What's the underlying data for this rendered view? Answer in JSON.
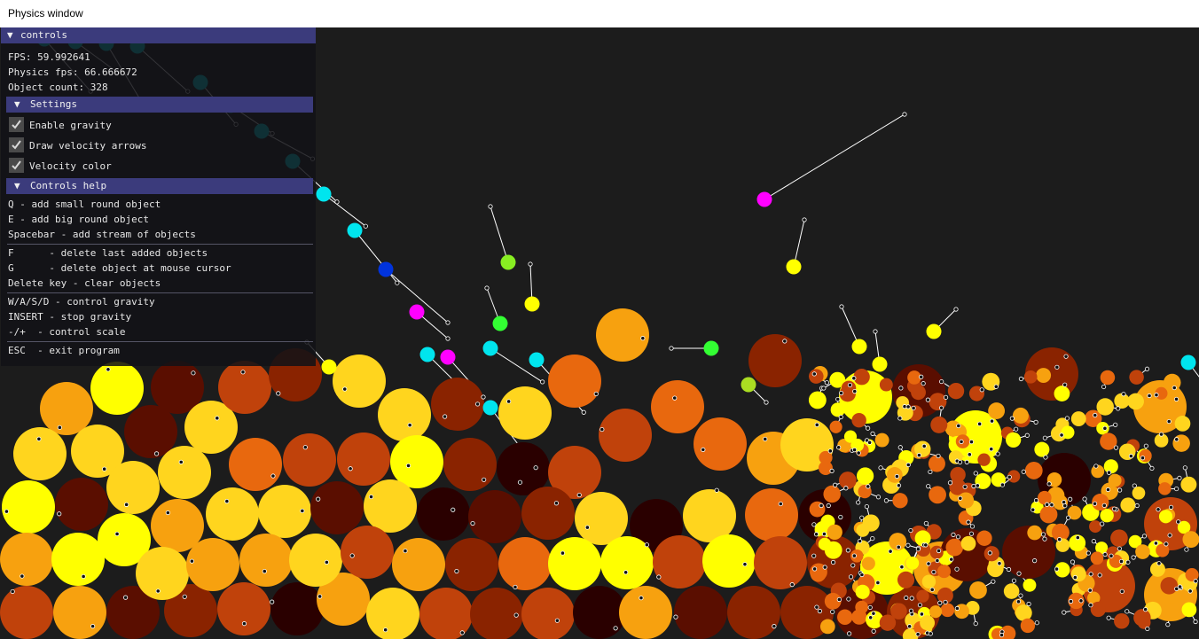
{
  "window_title": "Physics window",
  "controls": {
    "header": "controls",
    "fps_line": "FPS: 59.992641",
    "physics_fps_line": "Physics fps: 66.666672",
    "object_count_line": "Object count: 328"
  },
  "settings": {
    "header": "Settings",
    "options": [
      {
        "label": "Enable gravity",
        "checked": true
      },
      {
        "label": "Draw velocity arrows",
        "checked": true
      },
      {
        "label": "Velocity color",
        "checked": true
      }
    ]
  },
  "help": {
    "header": "Controls help",
    "lines": [
      "Q - add small round object",
      "E - add big round object",
      "Spacebar - add stream of objects",
      "F      - delete last added objects",
      "G      - delete object at mouse cursor",
      "Delete key - clear objects",
      "W/A/S/D - control gravity",
      "INSERT - stop gravity",
      "-/+  - control scale",
      "ESC  - exit program"
    ]
  },
  "icons": {
    "collapse": "triangle-down-icon",
    "check": "checkmark-icon"
  },
  "colors": {
    "panel_header": "#3b3b7c",
    "background": "#1c1c1c",
    "slow": "#2a0000",
    "medium": "#d0400a",
    "fast": "#ffff00",
    "cyan": "#00e5ee",
    "magenta": "#ff00ff",
    "blue": "#0033dd",
    "green": "#33ff33"
  }
}
